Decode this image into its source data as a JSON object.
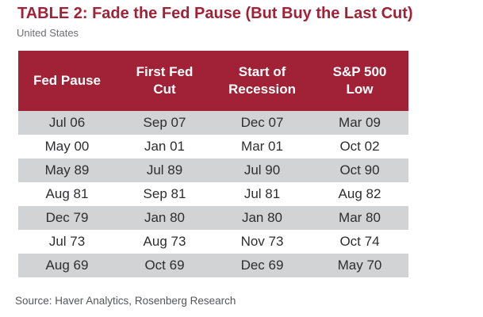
{
  "chart_data": {
    "type": "table",
    "title": "TABLE 2: Fade the Fed Pause (But Buy the Last Cut)",
    "subtitle": "United States",
    "columns": [
      "Fed Pause",
      "First Fed Cut",
      "Start of Recession",
      "S&P 500 Low"
    ],
    "column_labels_display": [
      "Fed Pause",
      "First Fed\nCut",
      "Start of\nRecession",
      "S&P 500\nLow"
    ],
    "rows": [
      [
        "Jul 06",
        "Sep 07",
        "Dec 07",
        "Mar 09"
      ],
      [
        "May 00",
        "Jan 01",
        "Mar 01",
        "Oct 02"
      ],
      [
        "May 89",
        "Jul 89",
        "Jul 90",
        "Oct 90"
      ],
      [
        "Aug 81",
        "Sep 81",
        "Jul 81",
        "Aug 82"
      ],
      [
        "Dec 79",
        "Jan 80",
        "Jan 80",
        "Mar 80"
      ],
      [
        "Jul 73",
        "Aug 73",
        "Nov 73",
        "Oct 74"
      ],
      [
        "Aug 69",
        "Oct 69",
        "Dec 69",
        "May 70"
      ]
    ],
    "source": "Source: Haver Analytics, Rosenberg Research",
    "legend_position": "none",
    "grid": false
  },
  "colors": {
    "accent_red": "#A12236",
    "row_alt_gray": "#D2D3D4",
    "header_text": "#FFFFFF",
    "subtitle_gray": "#6D6E71",
    "source_gray": "#565759",
    "body_text": "#2E2E30"
  }
}
